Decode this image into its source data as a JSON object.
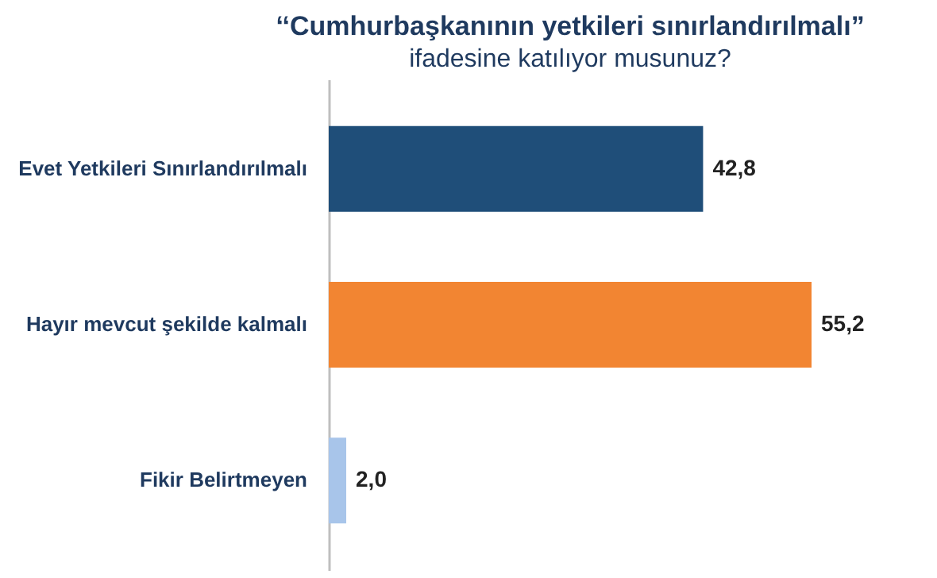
{
  "chart_data": {
    "type": "bar",
    "orientation": "horizontal",
    "title": "‘‘Cumhurbaşkanının yetkileri sınırlandırılmalı”",
    "subtitle": "ifadesine katılıyor musunuz?",
    "categories": [
      "Evet Yetkileri Sınırlandırılmalı",
      "Hayır mevcut şekilde kalmalı",
      "Fikir Belirtmeyen"
    ],
    "values": [
      42.8,
      55.2,
      2.0
    ],
    "colors": [
      "#1f4e79",
      "#f28532",
      "#a8c5ea"
    ],
    "value_labels": [
      "42,8",
      "55,2",
      "2,0"
    ]
  }
}
